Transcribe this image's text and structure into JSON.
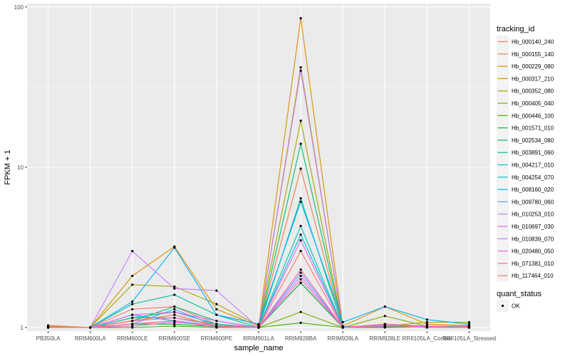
{
  "chart_data": {
    "type": "line",
    "xlabel": "sample_name",
    "ylabel": "FPKM + 1",
    "y_scale": "log10",
    "ylim": [
      0.95,
      105
    ],
    "y_ticks": [
      1,
      10,
      100
    ],
    "y_tick_labels": [
      "1",
      "10",
      "100"
    ],
    "grid": true,
    "legend_position": "right",
    "categories": [
      "PB350LA",
      "RRIM600LA",
      "RRIM600LE",
      "RRIM600SE",
      "RRIM600PE",
      "RRIM901LA",
      "RRIM928BA",
      "RRIM928LA",
      "RRIM928LE",
      "RRII105LA_Control",
      "RRII105LA_Stressed"
    ],
    "legend_title": "tracking_id",
    "series": [
      {
        "name": "Hb_000140_240",
        "color": "#F8766D",
        "values": [
          1.02,
          1.0,
          1.3,
          1.35,
          1.05,
          1.0,
          1.9,
          1.0,
          1.03,
          1.02,
          1.02
        ]
      },
      {
        "name": "Hb_000155_140",
        "color": "#EF7F49",
        "values": [
          1.03,
          1.0,
          1.1,
          1.2,
          1.02,
          1.0,
          9.8,
          1.0,
          1.02,
          1.02,
          1.01
        ]
      },
      {
        "name": "Hb_000229_080",
        "color": "#DE8C00",
        "values": [
          1.0,
          1.0,
          2.1,
          3.2,
          1.3,
          1.02,
          85.0,
          1.02,
          1.35,
          1.05,
          1.03
        ]
      },
      {
        "name": "Hb_000317_210",
        "color": "#CD9600",
        "values": [
          1.01,
          1.0,
          1.15,
          1.15,
          1.05,
          1.0,
          42.0,
          1.0,
          1.05,
          1.02,
          1.01
        ]
      },
      {
        "name": "Hb_000352_080",
        "color": "#A3A500",
        "values": [
          1.0,
          1.0,
          1.85,
          1.8,
          1.4,
          1.03,
          19.5,
          1.01,
          1.02,
          1.08,
          1.08
        ]
      },
      {
        "name": "Hb_000405_040",
        "color": "#7CAE00",
        "values": [
          1.0,
          1.0,
          1.05,
          1.1,
          1.02,
          1.0,
          1.25,
          1.0,
          1.18,
          1.02,
          1.01
        ]
      },
      {
        "name": "Hb_000446_100",
        "color": "#39B600",
        "values": [
          1.0,
          1.0,
          1.0,
          1.02,
          1.0,
          1.0,
          1.07,
          1.0,
          1.0,
          1.01,
          1.0
        ]
      },
      {
        "name": "Hb_001571_010",
        "color": "#00BA38",
        "values": [
          1.0,
          1.0,
          1.05,
          1.05,
          1.01,
          1.0,
          1.9,
          1.0,
          1.01,
          1.01,
          1.0
        ]
      },
      {
        "name": "Hb_002534_080",
        "color": "#00BE67",
        "values": [
          1.0,
          1.0,
          1.1,
          1.35,
          1.1,
          1.0,
          14.0,
          1.0,
          1.01,
          1.01,
          1.0
        ]
      },
      {
        "name": "Hb_003891_060",
        "color": "#00BF96",
        "values": [
          1.0,
          1.0,
          1.4,
          1.6,
          1.2,
          1.0,
          6.4,
          1.0,
          1.01,
          1.02,
          1.01
        ]
      },
      {
        "name": "Hb_004217_010",
        "color": "#00C0B8",
        "values": [
          1.0,
          1.0,
          1.15,
          1.25,
          1.05,
          1.0,
          4.3,
          1.0,
          1.02,
          1.01,
          1.01
        ]
      },
      {
        "name": "Hb_004254_070",
        "color": "#00BCD8",
        "values": [
          1.0,
          1.0,
          1.2,
          1.1,
          1.02,
          1.0,
          3.8,
          1.01,
          1.03,
          1.02,
          1.0
        ]
      },
      {
        "name": "Hb_008160_020",
        "color": "#00B0F6",
        "values": [
          1.0,
          1.0,
          1.45,
          3.15,
          1.2,
          1.05,
          6.1,
          1.08,
          1.35,
          1.12,
          1.05
        ]
      },
      {
        "name": "Hb_009780_060",
        "color": "#619CFF",
        "values": [
          1.0,
          1.0,
          1.05,
          1.3,
          1.02,
          1.0,
          2.2,
          1.0,
          1.02,
          1.02,
          1.0
        ]
      },
      {
        "name": "Hb_010253_010",
        "color": "#B983FF",
        "values": [
          1.0,
          1.0,
          1.1,
          1.15,
          1.02,
          1.0,
          40.0,
          1.0,
          1.03,
          1.01,
          1.01
        ]
      },
      {
        "name": "Hb_010697_030",
        "color": "#E76BF3",
        "values": [
          1.0,
          1.0,
          1.2,
          1.25,
          1.1,
          1.0,
          3.5,
          1.0,
          1.05,
          1.02,
          1.0
        ]
      },
      {
        "name": "Hb_010839_070",
        "color": "#C77CFF",
        "values": [
          1.0,
          1.0,
          3.0,
          1.75,
          1.7,
          1.0,
          2.1,
          1.0,
          1.02,
          1.02,
          1.0
        ]
      },
      {
        "name": "Hb_020480_050",
        "color": "#FD61D1",
        "values": [
          1.0,
          1.0,
          1.02,
          1.08,
          1.03,
          1.0,
          2.0,
          1.0,
          1.03,
          1.0,
          1.0
        ]
      },
      {
        "name": "Hb_071381_010",
        "color": "#FF67A4",
        "values": [
          1.0,
          1.0,
          1.05,
          1.1,
          1.0,
          1.0,
          2.3,
          1.0,
          1.05,
          1.02,
          1.0
        ]
      },
      {
        "name": "Hb_117464_010",
        "color": "#F8766D",
        "values": [
          1.0,
          1.0,
          1.1,
          1.2,
          1.02,
          1.0,
          3.0,
          1.0,
          1.03,
          1.0,
          1.0
        ]
      }
    ],
    "second_legend": {
      "title": "quant_status",
      "items": [
        "OK"
      ]
    }
  }
}
